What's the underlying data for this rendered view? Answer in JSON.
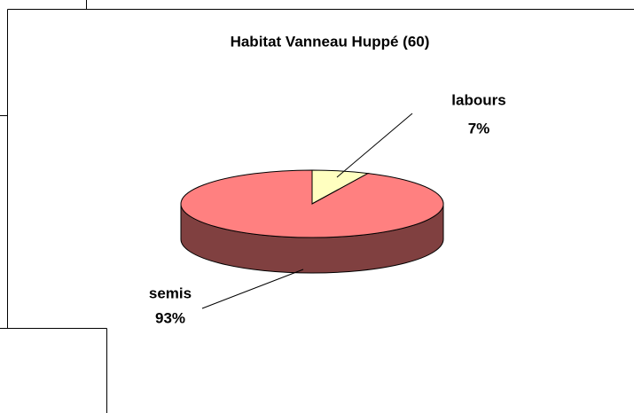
{
  "chart_data": {
    "type": "pie",
    "title": "Habitat Vanneau Huppé (60)",
    "categories": [
      "labours",
      "semis"
    ],
    "values": [
      7,
      93
    ],
    "value_labels": [
      "7%",
      "93%"
    ],
    "colors": [
      "#ffffc0",
      "#ff8080"
    ]
  }
}
